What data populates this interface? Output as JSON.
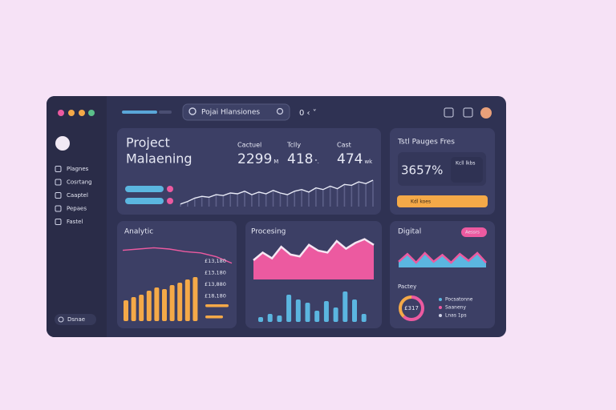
{
  "window": {
    "search": "Pojai Hlansiones",
    "nav_control": "0 ‹ ˅"
  },
  "sidebar": {
    "items": [
      "Plagnes",
      "Cosrtang",
      "Caaptel",
      "Pepaes",
      "Fastel"
    ],
    "footer": "Dsnae"
  },
  "project": {
    "title": [
      "Project",
      "Malaening"
    ],
    "stats": [
      {
        "label": "Cactuel",
        "value": "2299",
        "unit": "M"
      },
      {
        "label": "Tclly",
        "value": "418",
        "unit": "\"."
      },
      {
        "label": "Cast",
        "value": "474",
        "unit": "wk"
      }
    ],
    "trend": [
      3,
      6,
      10,
      12,
      11,
      14,
      13,
      16,
      15,
      18,
      14,
      17,
      15,
      19,
      16,
      14,
      18,
      20,
      17,
      22,
      20,
      24,
      21,
      26,
      25,
      29,
      27,
      31
    ]
  },
  "summary": {
    "title": "Tstl Pauges Fres",
    "value": "3657%",
    "note": "Kcll lkbs",
    "button": "Kdl koes"
  },
  "analytics": {
    "title": "Analytic",
    "line": [
      14,
      15,
      16,
      15,
      13,
      12,
      9,
      4
    ],
    "labels": [
      "£13,180",
      "£13,180",
      "£13,880",
      "£18,180"
    ],
    "bars": [
      26,
      30,
      33,
      38,
      42,
      40,
      45,
      48,
      52,
      55
    ],
    "mini_bars": [
      29,
      22
    ]
  },
  "processing": {
    "title": "Procesing",
    "area": [
      20,
      28,
      22,
      34,
      26,
      24,
      36,
      30,
      28,
      40,
      32,
      38,
      42,
      36
    ],
    "bars": [
      6,
      10,
      8,
      34,
      28,
      24,
      14,
      26,
      18,
      38,
      28,
      10
    ]
  },
  "digital": {
    "title": "Digital",
    "button": "Aessrs",
    "wave": [
      6,
      14,
      5,
      15,
      6,
      13,
      5,
      14,
      7,
      15,
      5
    ],
    "subtitle": "Pactey",
    "donut_label": "£317",
    "donut": [
      62,
      38
    ],
    "legend": [
      "Pocsatonne",
      "Saaneny",
      "Lnas 1ps"
    ]
  }
}
